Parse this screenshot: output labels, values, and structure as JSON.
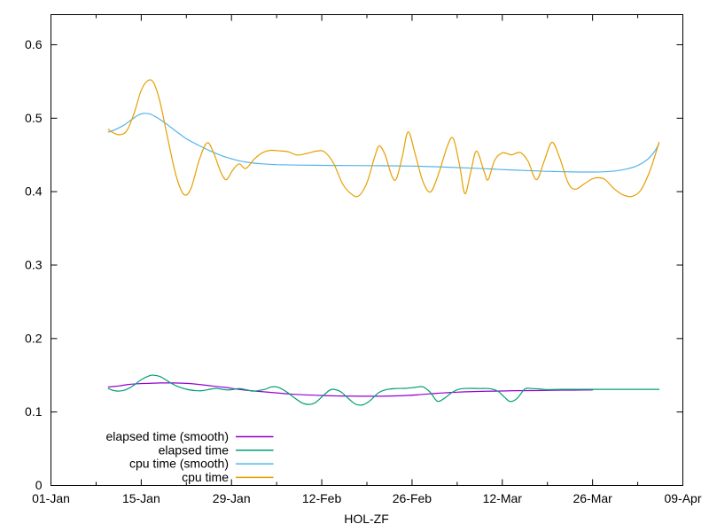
{
  "colors": {
    "background": "#ffffff",
    "axis": "#000000",
    "text": "#000000",
    "elapsed_smooth": "#9400d3",
    "elapsed": "#009e73",
    "cpu_smooth": "#56b4e9",
    "cpu": "#e69f00"
  },
  "chart_data": {
    "type": "line",
    "title": "",
    "xlabel": "HOL-ZF",
    "ylabel": "",
    "grid": false,
    "x_axis": {
      "unit": "date (day offset from 01-Jan)",
      "range_days": [
        0,
        98
      ],
      "major_ticks": [
        {
          "day": 0,
          "label": "01-Jan"
        },
        {
          "day": 14,
          "label": "15-Jan"
        },
        {
          "day": 28,
          "label": "29-Jan"
        },
        {
          "day": 42,
          "label": "12-Feb"
        },
        {
          "day": 56,
          "label": "26-Feb"
        },
        {
          "day": 70,
          "label": "12-Mar"
        },
        {
          "day": 84,
          "label": "26-Mar"
        },
        {
          "day": 98,
          "label": "09-Apr"
        }
      ],
      "minor_tick_days": [
        7,
        21,
        35,
        49,
        63,
        77,
        91
      ]
    },
    "y_axis": {
      "range": [
        0,
        0.641
      ],
      "ticks": [
        {
          "value": 0.0,
          "label": "0"
        },
        {
          "value": 0.1,
          "label": "0.1"
        },
        {
          "value": 0.2,
          "label": "0.2"
        },
        {
          "value": 0.3,
          "label": "0.3"
        },
        {
          "value": 0.4,
          "label": "0.4"
        },
        {
          "value": 0.5,
          "label": "0.5"
        },
        {
          "value": 0.6,
          "label": "0.6"
        }
      ]
    },
    "legend": {
      "position": "inside-bottom-left",
      "items": [
        "elapsed time (smooth)",
        "elapsed time",
        "cpu time (smooth)",
        "cpu time"
      ]
    },
    "series": [
      {
        "name": "elapsed time (smooth)",
        "color": "#9400d3",
        "points": [
          [
            8.9,
            0.134
          ],
          [
            10.5,
            0.1355
          ],
          [
            12,
            0.1375
          ],
          [
            13.5,
            0.1385
          ],
          [
            15,
            0.139
          ],
          [
            17,
            0.1395
          ],
          [
            19,
            0.1395
          ],
          [
            21,
            0.139
          ],
          [
            23,
            0.1375
          ],
          [
            25,
            0.1355
          ],
          [
            27,
            0.1335
          ],
          [
            29,
            0.131
          ],
          [
            31,
            0.129
          ],
          [
            33,
            0.1275
          ],
          [
            35,
            0.126
          ],
          [
            37,
            0.1245
          ],
          [
            39,
            0.1235
          ],
          [
            42,
            0.1225
          ],
          [
            45,
            0.1218
          ],
          [
            48,
            0.1215
          ],
          [
            51,
            0.1215
          ],
          [
            54,
            0.122
          ],
          [
            57,
            0.1235
          ],
          [
            60,
            0.1255
          ],
          [
            63,
            0.127
          ],
          [
            66,
            0.128
          ],
          [
            69,
            0.1285
          ],
          [
            72,
            0.129
          ],
          [
            75,
            0.1292
          ],
          [
            78,
            0.1295
          ],
          [
            81,
            0.1298
          ],
          [
            84,
            0.13
          ]
        ]
      },
      {
        "name": "elapsed time",
        "color": "#009e73",
        "points": [
          [
            8.9,
            0.132
          ],
          [
            9.6,
            0.1295
          ],
          [
            10.4,
            0.1285
          ],
          [
            11.5,
            0.13
          ],
          [
            12.8,
            0.136
          ],
          [
            14,
            0.144
          ],
          [
            15.3,
            0.1495
          ],
          [
            16,
            0.15
          ],
          [
            17,
            0.148
          ],
          [
            18.3,
            0.141
          ],
          [
            19.6,
            0.135
          ],
          [
            21,
            0.131
          ],
          [
            22.3,
            0.1292
          ],
          [
            23.4,
            0.129
          ],
          [
            24.6,
            0.1308
          ],
          [
            25.6,
            0.1322
          ],
          [
            26.6,
            0.1308
          ],
          [
            27.5,
            0.13
          ],
          [
            28.4,
            0.131
          ],
          [
            29.2,
            0.132
          ],
          [
            30.3,
            0.1303
          ],
          [
            31.2,
            0.1285
          ],
          [
            32.2,
            0.1292
          ],
          [
            33.2,
            0.1308
          ],
          [
            34.2,
            0.1342
          ],
          [
            35.3,
            0.1335
          ],
          [
            36.6,
            0.127
          ],
          [
            37.8,
            0.119
          ],
          [
            39,
            0.1122
          ],
          [
            40,
            0.1103
          ],
          [
            41,
            0.1128
          ],
          [
            42.2,
            0.122
          ],
          [
            43.2,
            0.1295
          ],
          [
            43.9,
            0.1308
          ],
          [
            45,
            0.1272
          ],
          [
            46.2,
            0.1178
          ],
          [
            47.3,
            0.1105
          ],
          [
            48.4,
            0.1098
          ],
          [
            49.5,
            0.1155
          ],
          [
            50.8,
            0.1262
          ],
          [
            52,
            0.1305
          ],
          [
            53.5,
            0.132
          ],
          [
            55,
            0.1322
          ],
          [
            56.5,
            0.1335
          ],
          [
            57.7,
            0.1342
          ],
          [
            58.8,
            0.127
          ],
          [
            59.9,
            0.1148
          ],
          [
            61,
            0.1185
          ],
          [
            62.3,
            0.1272
          ],
          [
            63.5,
            0.1315
          ],
          [
            65,
            0.1322
          ],
          [
            66.5,
            0.132
          ],
          [
            68,
            0.1318
          ],
          [
            69.3,
            0.1285
          ],
          [
            70.3,
            0.1205
          ],
          [
            71.2,
            0.1143
          ],
          [
            72.3,
            0.1185
          ],
          [
            73.5,
            0.1315
          ],
          [
            74.5,
            0.132
          ],
          [
            75.7,
            0.1315
          ],
          [
            77,
            0.1305
          ],
          [
            79,
            0.1308
          ],
          [
            82,
            0.1308
          ],
          [
            86,
            0.1308
          ],
          [
            90,
            0.1308
          ],
          [
            94.3,
            0.1308
          ]
        ]
      },
      {
        "name": "cpu time (smooth)",
        "color": "#56b4e9",
        "points": [
          [
            8.9,
            0.481
          ],
          [
            10,
            0.4845
          ],
          [
            11.3,
            0.4905
          ],
          [
            12.5,
            0.498
          ],
          [
            13.5,
            0.504
          ],
          [
            14.4,
            0.5065
          ],
          [
            15.4,
            0.5055
          ],
          [
            16.6,
            0.5
          ],
          [
            18,
            0.4915
          ],
          [
            19.5,
            0.4815
          ],
          [
            21,
            0.472
          ],
          [
            22.8,
            0.4635
          ],
          [
            24.8,
            0.455
          ],
          [
            26.8,
            0.448
          ],
          [
            28.8,
            0.4428
          ],
          [
            30.8,
            0.4395
          ],
          [
            32.8,
            0.4378
          ],
          [
            35,
            0.4368
          ],
          [
            38,
            0.4362
          ],
          [
            42,
            0.4358
          ],
          [
            46,
            0.4356
          ],
          [
            50,
            0.4354
          ],
          [
            54,
            0.4351
          ],
          [
            57,
            0.4346
          ],
          [
            60,
            0.4338
          ],
          [
            63,
            0.4328
          ],
          [
            66,
            0.4318
          ],
          [
            69,
            0.4305
          ],
          [
            72,
            0.4293
          ],
          [
            75,
            0.4283
          ],
          [
            78,
            0.4274
          ],
          [
            81,
            0.4269
          ],
          [
            83.5,
            0.4267
          ],
          [
            85.5,
            0.427
          ],
          [
            87.5,
            0.4282
          ],
          [
            89.3,
            0.4308
          ],
          [
            91,
            0.4355
          ],
          [
            92.5,
            0.4438
          ],
          [
            93.6,
            0.4545
          ],
          [
            94.3,
            0.4655
          ]
        ]
      },
      {
        "name": "cpu time",
        "color": "#e69f00",
        "points": [
          [
            8.9,
            0.485
          ],
          [
            9.6,
            0.4805
          ],
          [
            10.7,
            0.4775
          ],
          [
            11.8,
            0.4835
          ],
          [
            12.9,
            0.507
          ],
          [
            14,
            0.538
          ],
          [
            15,
            0.551
          ],
          [
            15.9,
            0.5485
          ],
          [
            16.9,
            0.5225
          ],
          [
            18.1,
            0.473
          ],
          [
            19.4,
            0.422
          ],
          [
            20.6,
            0.3962
          ],
          [
            21.7,
            0.4042
          ],
          [
            23,
            0.4432
          ],
          [
            24.2,
            0.4665
          ],
          [
            25.2,
            0.4535
          ],
          [
            26.3,
            0.4275
          ],
          [
            27.2,
            0.4162
          ],
          [
            28.2,
            0.4295
          ],
          [
            29.2,
            0.4378
          ],
          [
            30.2,
            0.4315
          ],
          [
            31.5,
            0.444
          ],
          [
            32.7,
            0.4525
          ],
          [
            34,
            0.4562
          ],
          [
            35.5,
            0.4555
          ],
          [
            36.8,
            0.4542
          ],
          [
            38.2,
            0.4498
          ],
          [
            39.8,
            0.4522
          ],
          [
            41.2,
            0.4552
          ],
          [
            42.4,
            0.4542
          ],
          [
            43.8,
            0.439
          ],
          [
            45.2,
            0.411
          ],
          [
            46.5,
            0.3975
          ],
          [
            47.7,
            0.394
          ],
          [
            49,
            0.412
          ],
          [
            50.2,
            0.447
          ],
          [
            50.9,
            0.4622
          ],
          [
            51.8,
            0.4505
          ],
          [
            52.9,
            0.4205
          ],
          [
            53.6,
            0.4182
          ],
          [
            54.5,
            0.448
          ],
          [
            55.4,
            0.4815
          ],
          [
            56.5,
            0.4505
          ],
          [
            57.7,
            0.4135
          ],
          [
            58.9,
            0.3998
          ],
          [
            60.2,
            0.4265
          ],
          [
            61.5,
            0.4625
          ],
          [
            62.4,
            0.4722
          ],
          [
            63.4,
            0.4345
          ],
          [
            64.2,
            0.3972
          ],
          [
            65.1,
            0.4265
          ],
          [
            66,
            0.4552
          ],
          [
            67.2,
            0.4268
          ],
          [
            67.8,
            0.4162
          ],
          [
            68.8,
            0.4425
          ],
          [
            70,
            0.4528
          ],
          [
            71.4,
            0.4502
          ],
          [
            72.8,
            0.4532
          ],
          [
            74,
            0.4412
          ],
          [
            75.3,
            0.4162
          ],
          [
            76.5,
            0.4418
          ],
          [
            77.7,
            0.4672
          ],
          [
            78.9,
            0.4462
          ],
          [
            80.2,
            0.4122
          ],
          [
            81.3,
            0.4032
          ],
          [
            82.7,
            0.4105
          ],
          [
            84.2,
            0.4182
          ],
          [
            85.8,
            0.4172
          ],
          [
            87.3,
            0.4042
          ],
          [
            88.8,
            0.3952
          ],
          [
            90.2,
            0.3938
          ],
          [
            91.5,
            0.4022
          ],
          [
            92.8,
            0.4262
          ],
          [
            94,
            0.458
          ],
          [
            94.3,
            0.4672
          ]
        ]
      }
    ]
  }
}
